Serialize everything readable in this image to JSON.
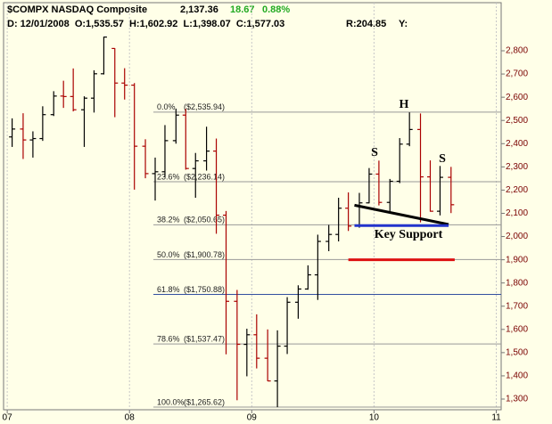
{
  "chart_data": {
    "type": "ohlc",
    "header": {
      "symbol": "$COMPX NASDAQ Composite",
      "last": "2,137.36",
      "change": "18.67",
      "change_pct": "0.88%",
      "change_color": "#22aa22",
      "bar_info": "D: 12/01/2008  O:1,535.57  H:1,602.92  L:1,398.07  C:1,577.03",
      "range": "R:204.85",
      "y": "Y:"
    },
    "x": [
      2007.04,
      2007.13,
      2007.21,
      2007.29,
      2007.38,
      2007.46,
      2007.54,
      2007.63,
      2007.71,
      2007.79,
      2007.88,
      2007.96,
      2008.04,
      2008.13,
      2008.21,
      2008.29,
      2008.38,
      2008.46,
      2008.54,
      2008.63,
      2008.71,
      2008.79,
      2008.88,
      2008.96,
      2009.04,
      2009.13,
      2009.21,
      2009.29,
      2009.38,
      2009.46,
      2009.54,
      2009.63,
      2009.71,
      2009.79,
      2009.88,
      2009.96,
      2010.04,
      2010.13,
      2010.21,
      2010.29,
      2010.38,
      2010.46,
      2010.54,
      2010.63
    ],
    "open": [
      2429,
      2463,
      2416,
      2422,
      2525,
      2605,
      2603,
      2546,
      2596,
      2701,
      2810,
      2661,
      2652,
      2389,
      2271,
      2279,
      2413,
      2523,
      2293,
      2326,
      2368,
      2092,
      1721,
      1535.57,
      1577,
      1476,
      1378,
      1528,
      1717,
      1774,
      1835,
      1979,
      2009,
      2122,
      2045,
      2145,
      2269,
      2147,
      2238,
      2398,
      2461,
      2257,
      2109,
      2255
    ],
    "high": [
      2509,
      2531,
      2453,
      2561,
      2626,
      2671,
      2724,
      2604,
      2716,
      2861,
      2811,
      2725,
      2661,
      2419,
      2340,
      2480,
      2551,
      2550,
      2360,
      2473,
      2422,
      2110,
      1770,
      1602.92,
      1665,
      1600,
      1596,
      1739,
      1790,
      1876,
      2008,
      2050,
      2167,
      2190,
      2188,
      2295,
      2327,
      2248,
      2424,
      2535,
      2530,
      2328,
      2304,
      2300
    ],
    "low": [
      2386,
      2334,
      2340,
      2412,
      2519,
      2554,
      2539,
      2386,
      2534,
      2698,
      2514,
      2590,
      2202,
      2251,
      2155,
      2256,
      2400,
      2288,
      2167,
      2284,
      2012,
      1493,
      1295,
      1398.07,
      1432,
      1377,
      1265,
      1494,
      1646,
      1771,
      1727,
      1937,
      1979,
      2024,
      2038,
      2143,
      2134,
      2100,
      2230,
      2389,
      2061,
      2107,
      2091,
      2101
    ],
    "close": [
      2463,
      2416,
      2422,
      2525,
      2605,
      2603,
      2546,
      2596,
      2701,
      2859,
      2661,
      2652,
      2389,
      2271,
      2279,
      2413,
      2523,
      2293,
      2326,
      2368,
      2092,
      1721,
      1536,
      1577.03,
      1476,
      1378,
      1528,
      1717,
      1774,
      1835,
      1979,
      2009,
      2122,
      2045,
      2145,
      2269,
      2147,
      2238,
      2398,
      2461,
      2257,
      2109,
      2255,
      2137
    ],
    "up_color": "#000000",
    "down_color": "#aa0000",
    "xlim": [
      2006.97,
      2011.04
    ],
    "xticks": [
      {
        "value": 2007,
        "label": "07"
      },
      {
        "value": 2008,
        "label": "08"
      },
      {
        "value": 2009,
        "label": "09"
      },
      {
        "value": 2010,
        "label": "10"
      },
      {
        "value": 2011,
        "label": "11"
      }
    ],
    "ylim": [
      1254,
      2942
    ],
    "yticks": [
      {
        "value": 1300,
        "label": "1,300"
      },
      {
        "value": 1400,
        "label": "1,400"
      },
      {
        "value": 1500,
        "label": "1,500"
      },
      {
        "value": 1600,
        "label": "1,600"
      },
      {
        "value": 1700,
        "label": "1,700"
      },
      {
        "value": 1800,
        "label": "1,800"
      },
      {
        "value": 1900,
        "label": "1,900"
      },
      {
        "value": 2000,
        "label": "2,000"
      },
      {
        "value": 2100,
        "label": "2,100"
      },
      {
        "value": 2200,
        "label": "2,200"
      },
      {
        "value": 2300,
        "label": "2,300"
      },
      {
        "value": 2400,
        "label": "2,400"
      },
      {
        "value": 2500,
        "label": "2,500"
      },
      {
        "value": 2600,
        "label": "2,600"
      },
      {
        "value": 2700,
        "label": "2,700"
      },
      {
        "value": 2800,
        "label": "2,800"
      }
    ],
    "grid": "x",
    "fib_levels": [
      {
        "pct": "0.0%",
        "value": 2535.94,
        "label": "($2,535.94)",
        "color": "#999999"
      },
      {
        "pct": "23.6%",
        "value": 2236.14,
        "label": "($2,236.14)",
        "color": "#999999"
      },
      {
        "pct": "38.2%",
        "value": 2050.65,
        "label": "($2,050.65)",
        "color": "#999999"
      },
      {
        "pct": "50.0%",
        "value": 1900.78,
        "label": "($1,900.78)",
        "color": "#999999"
      },
      {
        "pct": "61.8%",
        "value": 1750.88,
        "label": "($1,750.88)",
        "color": "#334fa0"
      },
      {
        "pct": "78.6%",
        "value": 1537.47,
        "label": "($1,537.47)",
        "color": "#999999"
      },
      {
        "pct": "100.0%",
        "value": 1265.62,
        "label": "($1,265.62)",
        "color": "#999999"
      }
    ],
    "trendlines": [
      {
        "color": "#000000",
        "x": [
          2009.84,
          2010.61
        ],
        "y": [
          2135,
          2052
        ]
      },
      {
        "color": "#2233cc",
        "x": [
          2009.84,
          2010.61
        ],
        "y": [
          2047,
          2047
        ]
      },
      {
        "color": "#dd1111",
        "x": [
          2009.79,
          2010.66
        ],
        "y": [
          1900,
          1900
        ]
      }
    ],
    "annotations": [
      "S",
      "H",
      "S",
      "Key Support"
    ]
  }
}
